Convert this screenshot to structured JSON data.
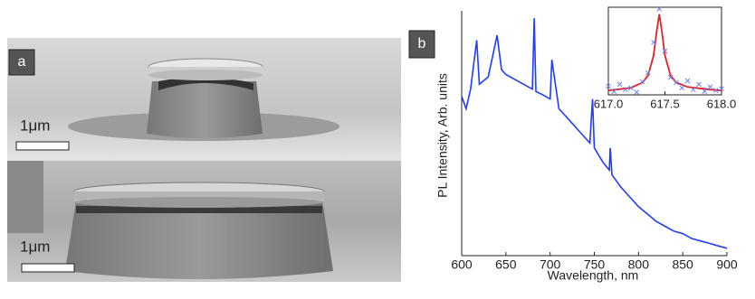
{
  "figure": {
    "panel_a": {
      "label": "a",
      "images": [
        {
          "scale_bar": "1μm"
        },
        {
          "scale_bar": "1μm"
        }
      ]
    },
    "panel_b": {
      "label": "b"
    }
  },
  "chart_data": [
    {
      "type": "line",
      "xlabel": "Wavelength, nm",
      "ylabel": "PL Intensity, Arb. units",
      "x": [
        600,
        605,
        610,
        617,
        620,
        630,
        640,
        645,
        650,
        660,
        670,
        680,
        682,
        684,
        690,
        700,
        702,
        710,
        720,
        730,
        740,
        745,
        748,
        750,
        760,
        767,
        768,
        770,
        780,
        790,
        800,
        810,
        820,
        830,
        840,
        850,
        860,
        870,
        880,
        890,
        900
      ],
      "values": [
        65,
        60,
        68,
        88,
        70,
        73,
        90,
        76,
        74,
        72,
        70,
        68,
        97,
        67,
        66,
        64,
        80,
        60,
        56,
        52,
        48,
        46,
        64,
        44,
        38,
        35,
        44,
        33,
        28,
        24,
        20,
        17,
        14,
        12,
        10,
        9,
        7,
        6,
        5,
        4,
        3
      ],
      "color": "#1f3cff",
      "xlim": [
        600,
        900
      ],
      "xticks": [
        600,
        650,
        700,
        750,
        800,
        850,
        900
      ],
      "ylim": [
        0,
        100
      ]
    },
    {
      "type": "scatter",
      "x": [
        617.0,
        617.05,
        617.1,
        617.15,
        617.2,
        617.25,
        617.3,
        617.35,
        617.4,
        617.45,
        617.5,
        617.55,
        617.6,
        617.65,
        617.7,
        617.75,
        617.8,
        617.85,
        617.9,
        617.95,
        618.0
      ],
      "values": [
        10,
        4,
        12,
        6,
        8,
        3,
        15,
        25,
        60,
        98,
        50,
        20,
        14,
        8,
        16,
        6,
        12,
        4,
        9,
        5,
        7
      ],
      "color": "#6a7ff0",
      "fit": {
        "x": [
          617.0,
          617.2,
          617.3,
          617.35,
          617.4,
          617.43,
          617.45,
          617.47,
          617.5,
          617.55,
          617.6,
          617.7,
          617.9,
          618.0
        ],
        "values": [
          5,
          8,
          14,
          22,
          45,
          75,
          92,
          75,
          45,
          22,
          14,
          9,
          6,
          5
        ],
        "color": "#e0232b"
      },
      "xlim": [
        617.0,
        618.0
      ],
      "xticks": [
        {
          "value": 617,
          "label": "617.0"
        },
        617.5,
        {
          "value": 618,
          "label": "618.0"
        }
      ],
      "ylim": [
        0,
        100
      ]
    }
  ]
}
